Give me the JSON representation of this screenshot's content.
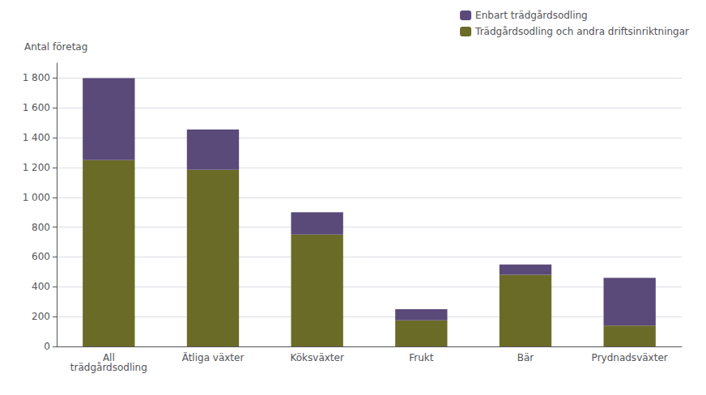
{
  "chart_data": {
    "type": "bar",
    "stacked": true,
    "ylabel": "Antal företag",
    "categories": [
      "All\nträdgårdsodling",
      "Ätliga växter",
      "Köksväxter",
      "Frukt",
      "Bär",
      "Prydnadsväxter"
    ],
    "series": [
      {
        "name": "Trädgårdsodling och andra driftsinriktningar",
        "color": "#6b6b28",
        "values": [
          1250,
          1185,
          750,
          175,
          480,
          140
        ]
      },
      {
        "name": "Enbart trädgårdsodling",
        "color": "#5a4a7a",
        "values": [
          550,
          270,
          150,
          75,
          70,
          320
        ]
      }
    ],
    "ylim": [
      0,
      1900
    ],
    "yticks": [
      0,
      200,
      400,
      600,
      800,
      {
        "value": 1000,
        "label": "1 000"
      },
      {
        "value": 1200,
        "label": "1 200"
      },
      {
        "value": 1400,
        "label": "1 400"
      },
      {
        "value": 1600,
        "label": "1 600"
      },
      {
        "value": 1800,
        "label": "1 800"
      }
    ],
    "grid": true,
    "legend": "upper right"
  }
}
